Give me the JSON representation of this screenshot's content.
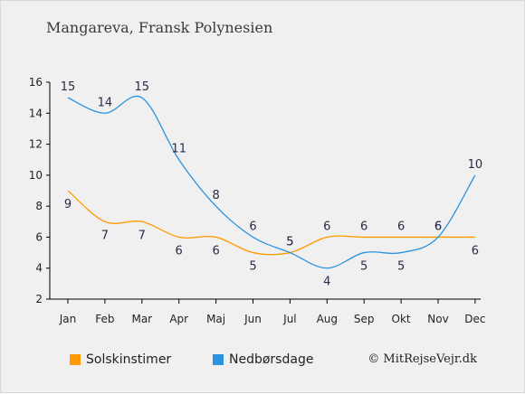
{
  "title": "Mangareva, Fransk Polynesien",
  "copyright": "© MitRejseVejr.dk",
  "chart_data": {
    "type": "line",
    "categories": [
      "Jan",
      "Feb",
      "Mar",
      "Apr",
      "Maj",
      "Jun",
      "Jul",
      "Aug",
      "Sep",
      "Okt",
      "Nov",
      "Dec"
    ],
    "y_ticks": [
      2,
      4,
      6,
      8,
      10,
      12,
      14,
      16
    ],
    "ylim": [
      2,
      16
    ],
    "grid": false,
    "legend_position": "bottom",
    "series": [
      {
        "name": "Solskinstimer",
        "color": "#ff9a00",
        "values": [
          9,
          7,
          7,
          6,
          6,
          5,
          5,
          6,
          6,
          6,
          6,
          6
        ]
      },
      {
        "name": "Nedbørsdage",
        "color": "#2b93e0",
        "values": [
          15,
          14,
          15,
          11,
          8,
          6,
          5,
          4,
          5,
          5,
          6,
          10
        ]
      }
    ]
  }
}
